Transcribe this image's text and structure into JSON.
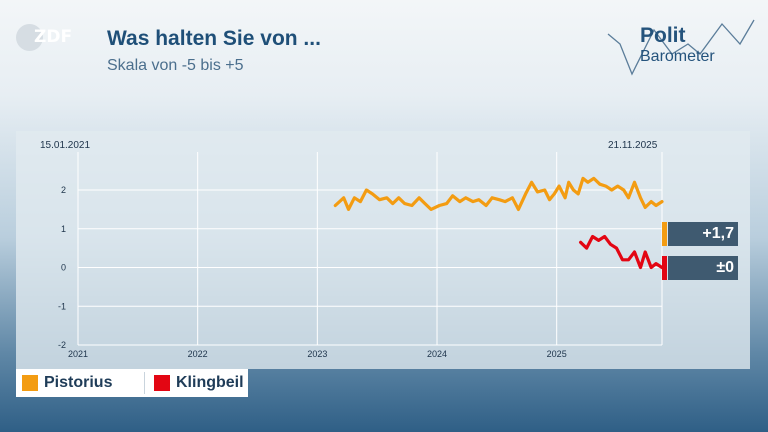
{
  "logo": {
    "text": "ZDF"
  },
  "header": {
    "title": "Was halten Sie von ...",
    "subtitle": "Skala von -5 bis +5"
  },
  "brand": {
    "line1": "Polit",
    "line2": "Barometer"
  },
  "chart_data": {
    "type": "line",
    "xlim": [
      2021.0,
      2025.88
    ],
    "ylim": [
      -2,
      2.6
    ],
    "x_ticks": [
      "2021",
      "2022",
      "2023",
      "2024",
      "2025"
    ],
    "y_ticks": [
      "2",
      "1",
      "0",
      "-1",
      "-2"
    ],
    "start_date": "15.01.2021",
    "end_date": "21.11.2025",
    "grid": true,
    "series": [
      {
        "name": "Pistorius",
        "color": "#f39c12",
        "x": [
          2023.15,
          2023.22,
          2023.26,
          2023.31,
          2023.36,
          2023.41,
          2023.46,
          2023.52,
          2023.58,
          2023.63,
          2023.68,
          2023.73,
          2023.79,
          2023.85,
          2023.9,
          2023.95,
          2024.02,
          2024.08,
          2024.13,
          2024.19,
          2024.24,
          2024.3,
          2024.35,
          2024.41,
          2024.46,
          2024.52,
          2024.57,
          2024.63,
          2024.68,
          2024.74,
          2024.79,
          2024.84,
          2024.9,
          2024.94,
          2024.98,
          2025.02,
          2025.07,
          2025.1,
          2025.14,
          2025.18,
          2025.22,
          2025.26,
          2025.31,
          2025.36,
          2025.41,
          2025.46,
          2025.51,
          2025.56,
          2025.6,
          2025.65,
          2025.7,
          2025.74,
          2025.79,
          2025.83,
          2025.88
        ],
        "y": [
          1.6,
          1.8,
          1.5,
          1.8,
          1.7,
          2.0,
          1.9,
          1.75,
          1.8,
          1.65,
          1.8,
          1.65,
          1.6,
          1.8,
          1.65,
          1.5,
          1.6,
          1.65,
          1.85,
          1.7,
          1.8,
          1.7,
          1.75,
          1.6,
          1.8,
          1.75,
          1.7,
          1.8,
          1.5,
          1.9,
          2.2,
          1.95,
          2.0,
          1.75,
          1.9,
          2.1,
          1.8,
          2.2,
          2.0,
          1.9,
          2.3,
          2.2,
          2.3,
          2.15,
          2.1,
          2.0,
          2.1,
          2.0,
          1.8,
          2.2,
          1.8,
          1.55,
          1.7,
          1.6,
          1.7
        ]
      },
      {
        "name": "Klingbeil",
        "color": "#e30613",
        "x": [
          2025.2,
          2025.25,
          2025.3,
          2025.35,
          2025.4,
          2025.45,
          2025.5,
          2025.55,
          2025.6,
          2025.65,
          2025.7,
          2025.74,
          2025.79,
          2025.83,
          2025.88
        ],
        "y": [
          0.65,
          0.5,
          0.8,
          0.7,
          0.8,
          0.6,
          0.5,
          0.2,
          0.2,
          0.4,
          0.0,
          0.4,
          0.0,
          0.1,
          0.0
        ]
      }
    ],
    "change_labels": [
      {
        "name": "Pistorius",
        "text": "+1,7",
        "color": "#f39c12"
      },
      {
        "name": "Klingbeil",
        "text": "±0",
        "color": "#e30613"
      }
    ],
    "legend": [
      {
        "name": "Pistorius",
        "color": "#f39c12"
      },
      {
        "name": "Klingbeil",
        "color": "#e30613"
      }
    ]
  }
}
